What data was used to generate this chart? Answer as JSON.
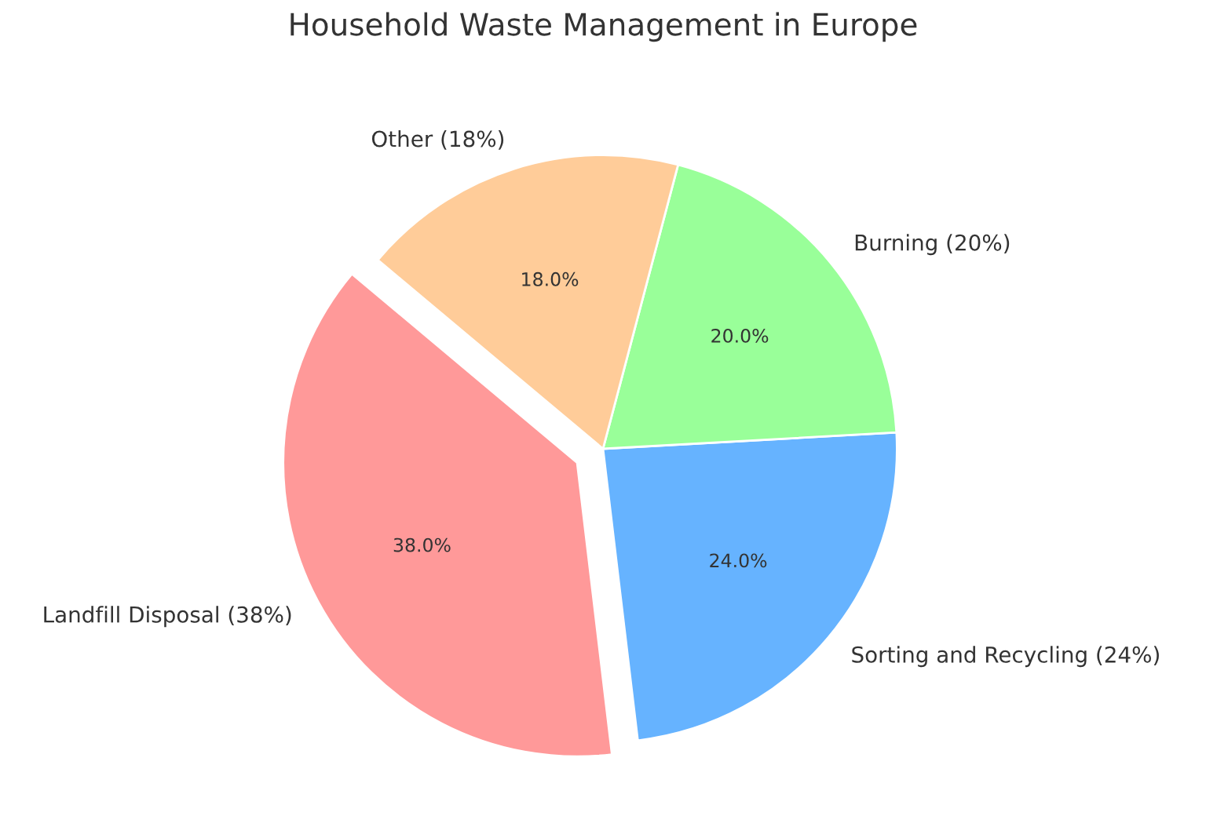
{
  "chart_data": {
    "type": "pie",
    "title": "Household Waste Management in Europe",
    "categories": [
      "Landfill Disposal (38%)",
      "Sorting and Recycling (24%)",
      "Burning (20%)",
      "Other (18%)"
    ],
    "values": [
      38,
      24,
      20,
      18
    ],
    "value_labels": [
      "38.0%",
      "24.0%",
      "20.0%",
      "18.0%"
    ],
    "colors": [
      "#ff9999",
      "#66b3ff",
      "#99ff99",
      "#ffcc99"
    ],
    "legend": false
  }
}
